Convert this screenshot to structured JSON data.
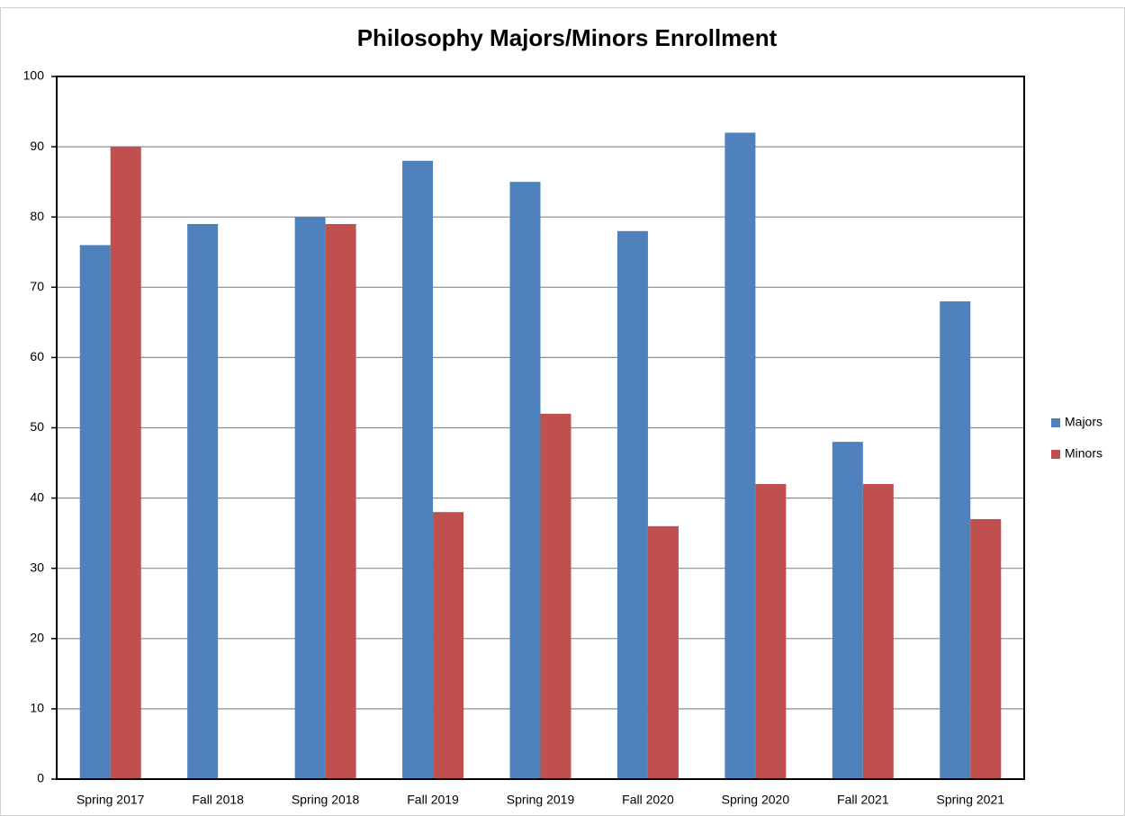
{
  "chart_data": {
    "type": "bar",
    "title": "Philosophy Majors/Minors Enrollment",
    "categories": [
      "Spring 2017",
      "Fall 2018",
      "Spring 2018",
      "Fall 2019",
      "Spring 2019",
      "Fall 2020",
      "Spring 2020",
      "Fall 2021",
      "Spring 2021"
    ],
    "series": [
      {
        "name": "Majors",
        "color": "#4f81bd",
        "values": [
          76,
          79,
          80,
          88,
          85,
          78,
          92,
          48,
          68
        ]
      },
      {
        "name": "Minors",
        "color": "#c0504d",
        "values": [
          90,
          null,
          79,
          38,
          52,
          36,
          42,
          42,
          37
        ]
      }
    ],
    "ylim": [
      0,
      100
    ],
    "yticks": [
      0,
      10,
      20,
      30,
      40,
      50,
      60,
      70,
      80,
      90,
      100
    ],
    "grid": true,
    "legend": "right"
  }
}
